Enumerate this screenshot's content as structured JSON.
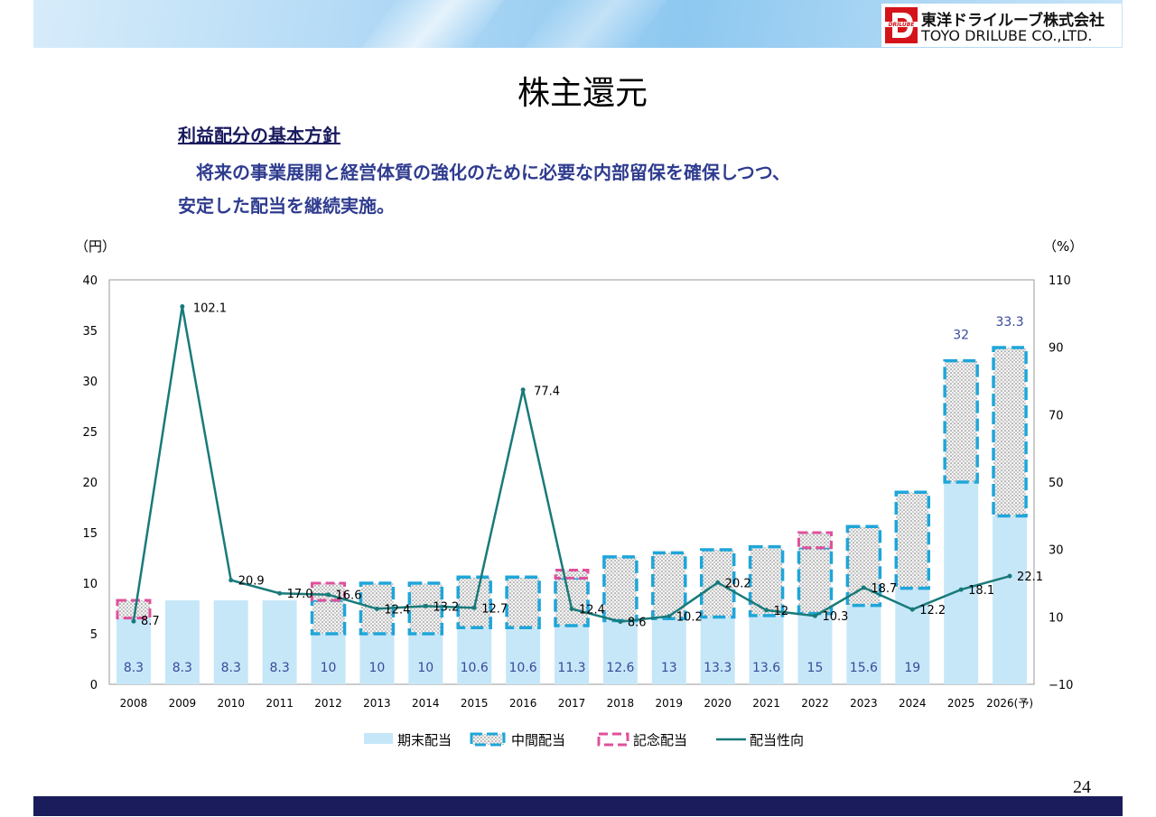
{
  "header": {
    "logo_mark_text": "DRILUBE",
    "company_jp": "東洋ドライルーブ株式会社",
    "company_en": "TOYO DRILUBE CO.,LTD."
  },
  "page_title": "株主還元",
  "policy": {
    "heading": "利益配分の基本方針",
    "line1": "　将来の事業展開と経営体質の強化のために必要な内部留保を確保しつつ、",
    "line2": "安定した配当を継続実施。"
  },
  "page_number": "24",
  "colors": {
    "period_end": "#c6e7f8",
    "interim_border": "#1fa6d9",
    "commemorative_border": "#e0509b",
    "payout_line": "#197a7a",
    "value_label": "#3a4a9a"
  },
  "chart_data": {
    "type": "bar",
    "left_axis_unit": "（円）",
    "right_axis_unit": "（%）",
    "ylim_left": [
      0,
      40
    ],
    "left_ticks": [
      "0",
      "5",
      "10",
      "15",
      "20",
      "25",
      "30",
      "35",
      "40"
    ],
    "ylim_right": [
      -10,
      110
    ],
    "right_ticks": [
      "−10",
      "10",
      "30",
      "50",
      "70",
      "90",
      "110"
    ],
    "categories": [
      "2008",
      "2009",
      "2010",
      "2011",
      "2012",
      "2013",
      "2014",
      "2015",
      "2016",
      "2017",
      "2018",
      "2019",
      "2020",
      "2021",
      "2022",
      "2023",
      "2024",
      "2025",
      "2026(予)"
    ],
    "series": [
      {
        "name": "期末配当",
        "values": [
          6.55,
          8.3,
          8.3,
          8.3,
          5.0,
          5.0,
          5.0,
          5.6,
          5.6,
          5.8,
          6.3,
          6.5,
          6.65,
          6.8,
          7.0,
          7.8,
          9.5,
          20.0,
          16.65
        ]
      },
      {
        "name": "中間配当",
        "values": [
          0,
          0,
          0,
          0,
          3.3,
          5.0,
          5.0,
          5.0,
          5.0,
          4.7,
          6.3,
          6.5,
          6.65,
          6.8,
          6.5,
          7.8,
          9.5,
          12.0,
          16.65
        ]
      },
      {
        "name": "記念配当",
        "values": [
          1.75,
          0,
          0,
          0,
          1.7,
          0,
          0,
          0,
          0,
          0.8,
          0,
          0,
          0,
          0,
          1.5,
          0,
          0,
          0,
          0
        ]
      },
      {
        "name": "配当性向",
        "axis": "right",
        "values": [
          8.7,
          102.1,
          20.9,
          17.0,
          16.6,
          12.4,
          13.2,
          12.7,
          77.4,
          12.4,
          8.6,
          10.2,
          20.2,
          12,
          10.3,
          18.7,
          12.2,
          18.1,
          22.1
        ]
      }
    ],
    "bar_total_labels": [
      "8.3",
      "8.3",
      "8.3",
      "8.3",
      "10",
      "10",
      "10",
      "10.6",
      "10.6",
      "11.3",
      "12.6",
      "13",
      "13.3",
      "13.6",
      "15",
      "15.6",
      "19",
      "32",
      "33.3"
    ],
    "total_label_position": [
      "bottom",
      "bottom",
      "bottom",
      "bottom",
      "bottom",
      "bottom",
      "bottom",
      "bottom",
      "bottom",
      "bottom",
      "bottom",
      "bottom",
      "bottom",
      "bottom",
      "bottom",
      "bottom",
      "bottom",
      "top",
      "top"
    ],
    "payout_labels": [
      "8.7",
      "102.1",
      "20.9",
      "17.0",
      "16.6",
      "12.4",
      "13.2",
      "12.7",
      "77.4",
      "12.4",
      "8.6",
      "10.2",
      "20.2",
      "12",
      "10.3",
      "18.7",
      "12.2",
      "18.1",
      "22.1"
    ],
    "legend": [
      "期末配当",
      "中間配当",
      "記念配当",
      "配当性向"
    ],
    "legend_position": "bottom"
  }
}
